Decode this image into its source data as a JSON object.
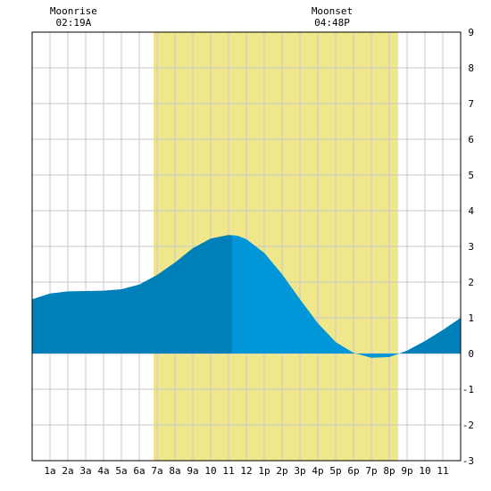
{
  "chart_data": {
    "type": "area",
    "x_unit": "hour",
    "xlim": [
      0,
      24
    ],
    "ylim": [
      -3,
      9
    ],
    "y_ticks": [
      -3,
      -2,
      -1,
      0,
      1,
      2,
      3,
      4,
      5,
      6,
      7,
      8,
      9
    ],
    "x_tick_labels": [
      "1a",
      "2a",
      "3a",
      "4a",
      "5a",
      "6a",
      "7a",
      "8a",
      "9a",
      "10",
      "11",
      "12",
      "1p",
      "2p",
      "3p",
      "4p",
      "5p",
      "6p",
      "7p",
      "8p",
      "9p",
      "10",
      "11"
    ],
    "grid": true,
    "daylight": {
      "start": 6.8,
      "end": 20.5,
      "color": "#f0e68c"
    },
    "split_hour": 11.2,
    "colors": {
      "dark_fill": "#0080b8",
      "light_fill": "#0096d8",
      "grid": "#c8c8c8",
      "frame": "#000000"
    },
    "moonrise": {
      "label": "Moonrise",
      "time": "02:19A",
      "hour": 2.32
    },
    "moonset": {
      "label": "Moonset",
      "time": "04:48P",
      "hour": 16.8
    },
    "series": [
      {
        "values": [
          [
            0,
            1.52
          ],
          [
            1,
            1.68
          ],
          [
            2,
            1.74
          ],
          [
            3,
            1.75
          ],
          [
            4,
            1.76
          ],
          [
            5,
            1.8
          ],
          [
            6,
            1.93
          ],
          [
            7,
            2.2
          ],
          [
            8,
            2.55
          ],
          [
            9,
            2.95
          ],
          [
            10,
            3.22
          ],
          [
            11,
            3.32
          ],
          [
            11.5,
            3.3
          ],
          [
            12,
            3.2
          ],
          [
            13,
            2.82
          ],
          [
            14,
            2.22
          ],
          [
            15,
            1.52
          ],
          [
            16,
            0.85
          ],
          [
            17,
            0.32
          ],
          [
            18,
            0.02
          ],
          [
            19,
            -0.12
          ],
          [
            20,
            -0.1
          ],
          [
            21,
            0.08
          ],
          [
            22,
            0.35
          ],
          [
            23,
            0.66
          ],
          [
            24,
            1.0
          ]
        ]
      }
    ]
  }
}
